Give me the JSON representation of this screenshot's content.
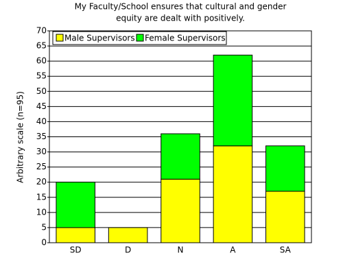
{
  "chart_data": {
    "type": "stacked-bar",
    "title": [
      "My Faculty/School ensures that cultural and gender",
      "equity are dealt with positively."
    ],
    "y_label": "Arbitrary scale (n=95)",
    "categories": [
      "SD",
      "D",
      "N",
      "A",
      "SA"
    ],
    "series": [
      {
        "name": "Male Supervisors",
        "color": "#ffff00",
        "values": [
          5,
          5,
          21,
          32,
          17
        ]
      },
      {
        "name": "Female Supervisors",
        "color": "#00ff00",
        "values": [
          15,
          0,
          15,
          30,
          15
        ]
      }
    ],
    "ylim": [
      0,
      70
    ],
    "yticks": [
      0,
      5,
      10,
      15,
      20,
      25,
      30,
      35,
      40,
      45,
      50,
      55,
      60,
      65,
      70
    ],
    "grid": true,
    "legend": "top-left"
  }
}
